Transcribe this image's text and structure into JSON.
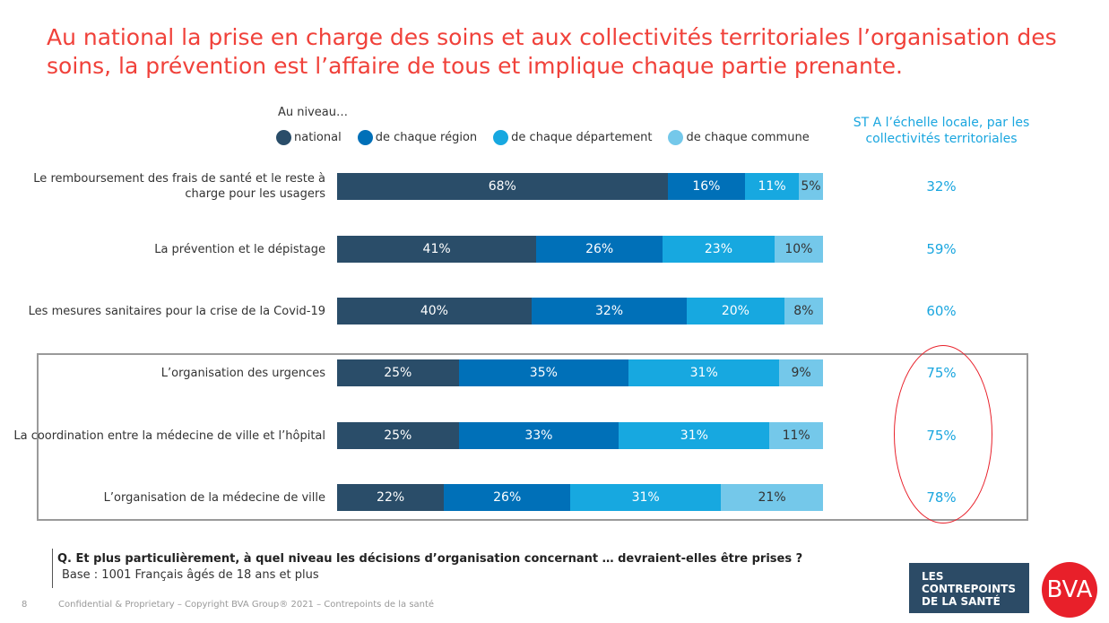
{
  "title": "Au national la prise en charge des soins et aux collectivités territoriales l’organisation des soins, la prévention est l’affaire de tous et implique chaque partie prenante.",
  "chart_data": {
    "type": "bar",
    "orientation": "horizontal-stacked-100",
    "legend_title": "Au niveau…",
    "legend_placement": "top",
    "categories": [
      "Le remboursement des frais de santé et le reste à charge pour les usagers",
      "La prévention et le dépistage",
      "Les mesures sanitaires pour la crise de la Covid-19",
      "L’organisation des urgences",
      "La coordination entre la médecine de ville et l’hôpital",
      "L’organisation de la médecine de ville"
    ],
    "series": [
      {
        "name": "national",
        "color": "#2a4d69",
        "values": [
          68,
          41,
          40,
          25,
          25,
          22
        ]
      },
      {
        "name": "de chaque région",
        "color": "#0070b8",
        "values": [
          16,
          26,
          32,
          35,
          33,
          26
        ]
      },
      {
        "name": "de chaque département",
        "color": "#17a8e0",
        "values": [
          11,
          23,
          20,
          31,
          31,
          31
        ]
      },
      {
        "name": "de chaque commune",
        "color": "#74c8ea",
        "values": [
          5,
          10,
          8,
          9,
          11,
          21
        ]
      }
    ],
    "st_header": "ST A l’échelle locale, par les collectivités territoriales",
    "st_values": [
      "32%",
      "59%",
      "60%",
      "75%",
      "75%",
      "78%"
    ]
  },
  "question": "Q. Et plus particulièrement, à quel niveau les décisions d’organisation concernant … devraient-elles être prises ?",
  "base": "Base : 1001 Français âgés de 18 ans et plus",
  "footer": "Confidential & Proprietary – Copyright BVA Group® 2021 – Contrepoints de la santé",
  "page_number": "8",
  "logos": {
    "contrepoints": "LES CONTREPOINTS DE LA SANTÉ",
    "bva": "BVA"
  }
}
